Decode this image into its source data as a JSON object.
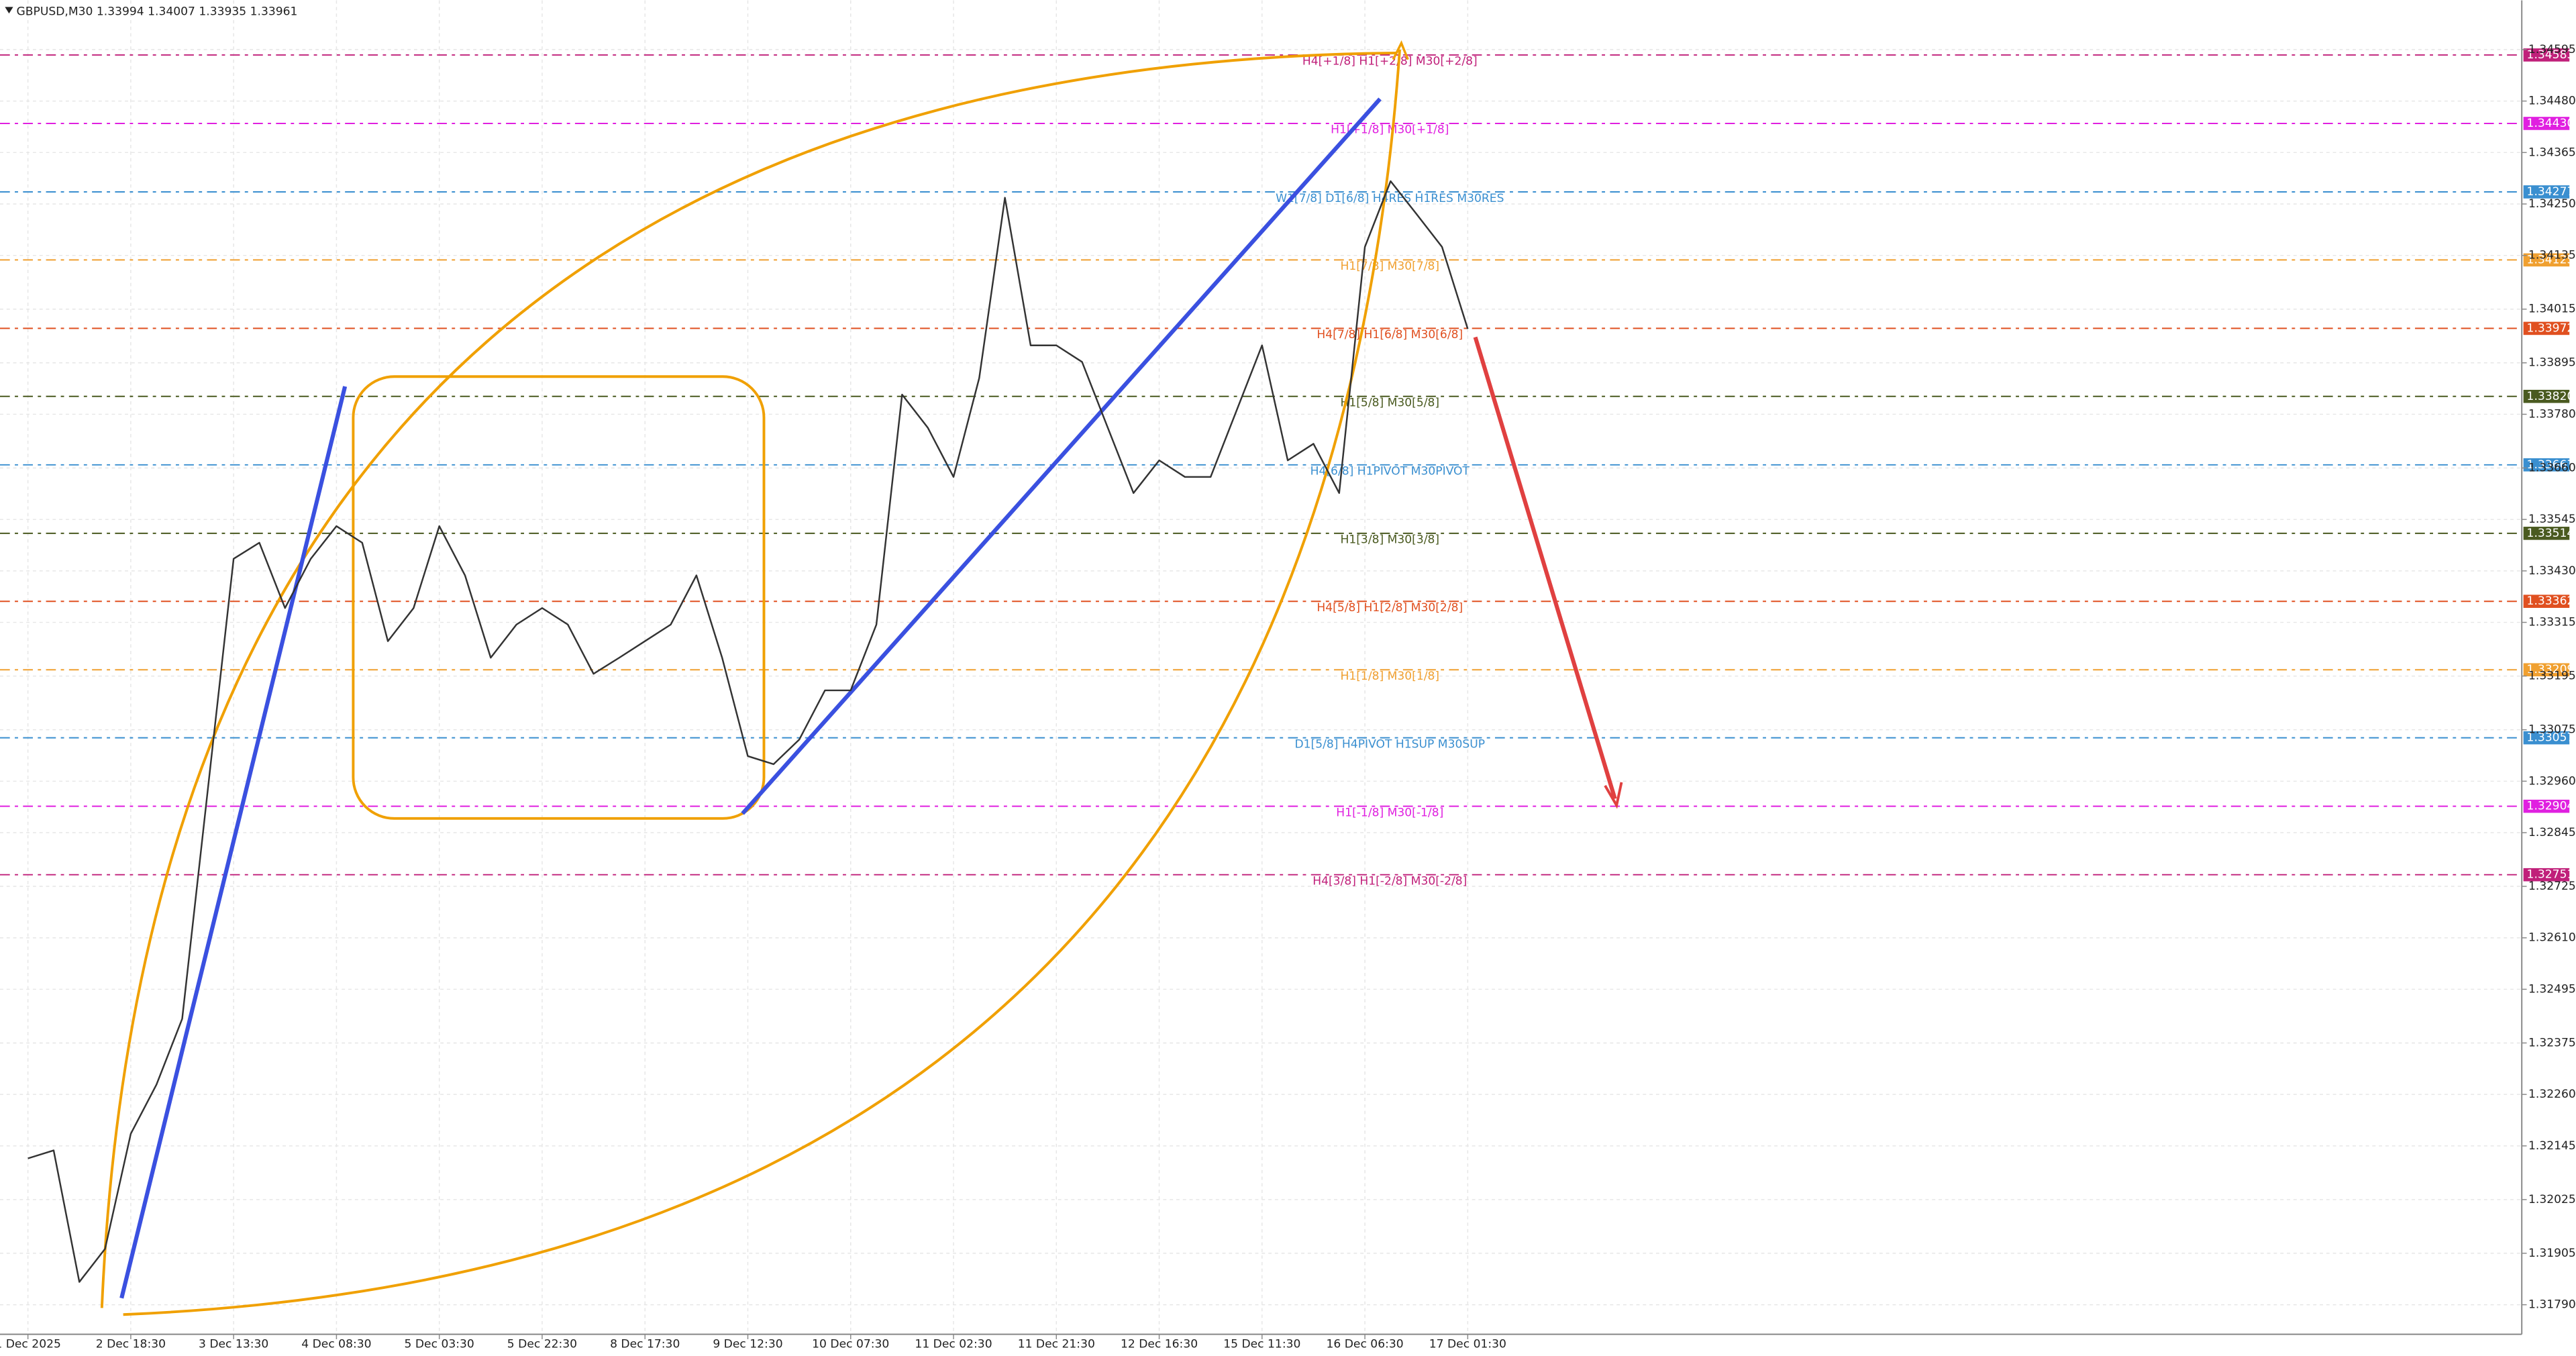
{
  "chart_data": {
    "type": "line",
    "title": "GBPUSD,M30  1.33994 1.34007 1.33935 1.33961",
    "categories": [
      "1 Dec 2025",
      null,
      null,
      null,
      "2 Dec 18:30",
      null,
      null,
      null,
      "3 Dec 13:30",
      null,
      null,
      null,
      "4 Dec 08:30",
      null,
      null,
      null,
      "5 Dec 03:30",
      null,
      null,
      null,
      "5 Dec 22:30",
      null,
      null,
      null,
      "8 Dec 17:30",
      null,
      null,
      null,
      "9 Dec 12:30",
      null,
      null,
      null,
      "10 Dec 07:30",
      null,
      null,
      null,
      "11 Dec 02:30",
      null,
      null,
      null,
      "11 Dec 21:30",
      null,
      null,
      null,
      "12 Dec 16:30",
      null,
      null,
      null,
      "15 Dec 11:30",
      null,
      null,
      null,
      "16 Dec 06:30",
      null,
      null,
      null,
      "17 Dec 01:30"
    ],
    "series": [
      {
        "name": "GBPUSD",
        "color": "#333333",
        "values": [
          1.32117,
          1.32135,
          1.31841,
          1.31915,
          1.32172,
          1.32282,
          1.32429,
          1.32943,
          1.33457,
          1.33493,
          1.33347,
          1.33457,
          1.3353,
          1.33493,
          1.33273,
          1.33347,
          1.3353,
          1.3342,
          1.33236,
          1.3331,
          1.33347,
          1.3331,
          1.332,
          1.33236,
          1.33273,
          1.3331,
          1.3342,
          1.33236,
          1.33016,
          1.32998,
          1.33053,
          1.33163,
          1.33163,
          1.3331,
          1.33824,
          1.3375,
          1.3364,
          1.33861,
          1.34264,
          1.33934,
          1.33934,
          1.33897,
          1.3375,
          1.33604,
          1.33677,
          1.3364,
          1.3364,
          1.33787,
          1.33934,
          1.33677,
          1.33714,
          1.33604,
          1.34154,
          1.34301,
          1.34228,
          1.34154,
          1.33971
        ]
      }
    ],
    "ylim": [
      1.31724,
      1.34705
    ],
    "yticks": [
      1.34595,
      {
        "value": 1.3448,
        "label": "1.34480"
      },
      1.34365,
      {
        "value": 1.3425,
        "label": "1.34250"
      },
      1.34135,
      1.34015,
      1.33895,
      {
        "value": 1.3378,
        "label": "1.33780"
      },
      {
        "value": 1.3366,
        "label": "1.33660"
      },
      1.33545,
      {
        "value": 1.3343,
        "label": "1.33430"
      },
      1.33315,
      1.33195,
      1.33075,
      {
        "value": 1.3296,
        "label": "1.32960"
      },
      1.32845,
      1.32725,
      {
        "value": 1.3261,
        "label": "1.32610"
      },
      1.32495,
      1.32375,
      {
        "value": 1.3226,
        "label": "1.32260"
      },
      1.32145,
      1.32025,
      1.31905,
      {
        "value": 1.3179,
        "label": "1.31790"
      }
    ],
    "grid": true,
    "levels": [
      {
        "label": "H4[+1/8] H1[+2/8] M30[+2/8]",
        "price": 1.34583,
        "color": "#c0207a"
      },
      {
        "label": "H1[+1/8] M30[+1/8]",
        "price": {
          "value": 1.3443,
          "label": "1.34430"
        },
        "color": "#e020e0"
      },
      {
        "label": "W1[7/8] D1[6/8] H4RES H1RES M30RES",
        "price": 1.34277,
        "color": "#3a8fd0"
      },
      {
        "label": "H1[7/8] M30[7/8]",
        "price": 1.34125,
        "color": "#f0a030"
      },
      {
        "label": "H4[7/8] H1[6/8] M30[6/8]",
        "price": 1.33972,
        "color": "#e05020"
      },
      {
        "label": "H1[5/8] M30[5/8]",
        "price": {
          "value": 1.3382,
          "label": "1.33820"
        },
        "color": "#4a5a20"
      },
      {
        "label": "H4[6/8] H1PIVOT M30PIVOT",
        "price": 1.33667,
        "color": "#3a8fd0"
      },
      {
        "label": "H1[3/8] M30[3/8]",
        "price": 1.33514,
        "color": "#4a5a20"
      },
      {
        "label": "H4[5/8] H1[2/8] M30[2/8]",
        "price": 1.33362,
        "color": "#e05020"
      },
      {
        "label": "H1[1/8] M30[1/8]",
        "price": 1.33209,
        "color": "#f0a030"
      },
      {
        "label": "D1[5/8] H4PIVOT H1SUP M30SUP",
        "price": 1.33057,
        "color": "#3a8fd0"
      },
      {
        "label": "H1[-1/8] M30[-1/8]",
        "price": 1.32904,
        "color": "#e020e0"
      },
      {
        "label": "H4[3/8] H1[-2/8] M30[-2/8]",
        "price": 1.32751,
        "color": "#c0207a"
      }
    ]
  }
}
